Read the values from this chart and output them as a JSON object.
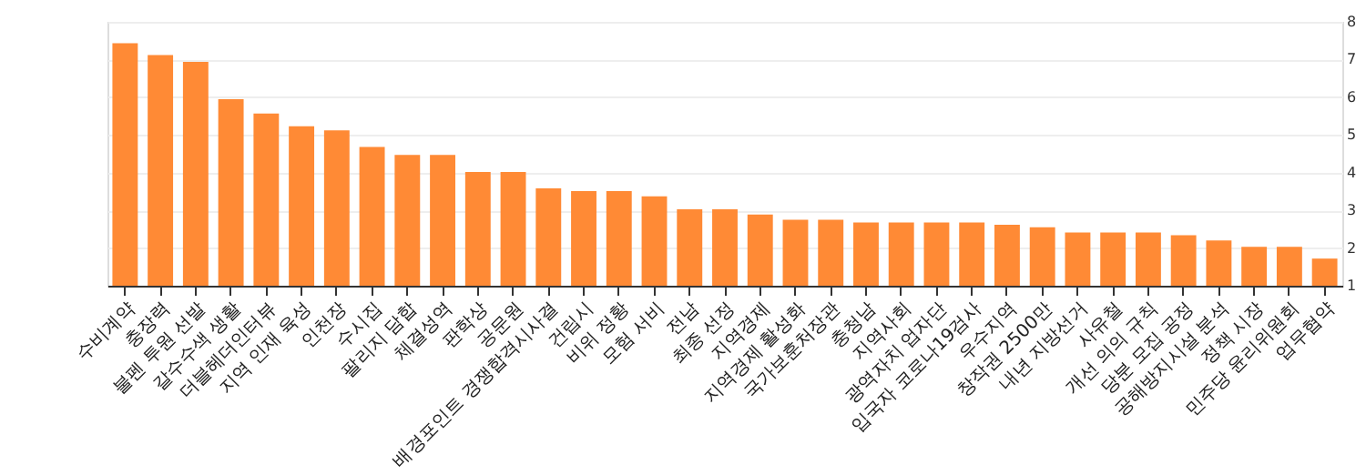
{
  "chart_data": {
    "type": "bar",
    "categories": [
      "수비계약",
      "충장력",
      "불펜 투원 선발",
      "갈수수색 생활",
      "더블헤더인터뷰",
      "지역 인재 육성",
      "인천장",
      "수시집",
      "팔리지 담합",
      "체결성역",
      "판학상",
      "공문원",
      "배경포인트 경쟁합격시사결",
      "건립시",
      "비위 정황",
      "모험 서비",
      "전남",
      "최종 선정",
      "지역경제",
      "지역경제 활성화",
      "국가보훈처장관",
      "충청남",
      "지역사회",
      "광역자치 업자단",
      "입국자 코로나19검사",
      "우수지역",
      "창작권 2500만",
      "내년 지방선거",
      "사유철",
      "개선 의의 규칙",
      "당분 모집 공정",
      "공해방지시설 분석",
      "정책 시장",
      "민주당 윤리위원회",
      "업무협약"
    ],
    "values": [
      7.43,
      7.12,
      6.94,
      5.95,
      5.57,
      5.23,
      5.12,
      4.68,
      4.47,
      4.47,
      4.02,
      4.02,
      3.58,
      3.51,
      3.51,
      3.37,
      3.03,
      3.03,
      2.89,
      2.75,
      2.75,
      2.68,
      2.68,
      2.68,
      2.68,
      2.62,
      2.55,
      2.41,
      2.41,
      2.41,
      2.34,
      2.2,
      2.03,
      2.03,
      1.72
    ],
    "color": "#ff8a35",
    "ylim": [
      1,
      8
    ],
    "yticks": [
      1,
      2,
      3,
      4,
      5,
      6,
      7,
      8
    ],
    "grid": "y"
  }
}
